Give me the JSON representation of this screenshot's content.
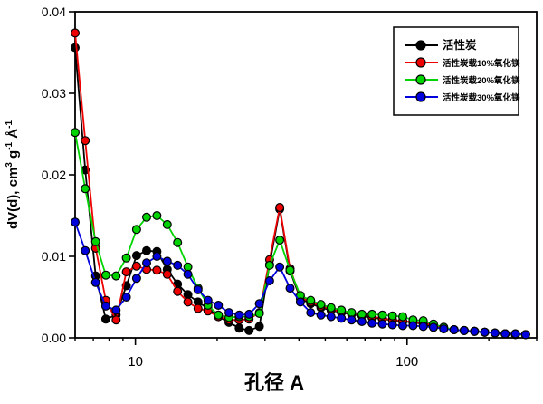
{
  "chart_data": {
    "type": "line",
    "title": "",
    "xlabel": "孔径 A",
    "ylabel": "dV(d), cm³ g⁻¹ Å⁻¹",
    "ylabel_parts": [
      {
        "t": "dV(d), cm",
        "sup": false
      },
      {
        "t": "3",
        "sup": true
      },
      {
        "t": " g",
        "sup": false
      },
      {
        "t": "-1",
        "sup": true
      },
      {
        "t": " Å",
        "sup": false
      },
      {
        "t": "-1",
        "sup": true
      }
    ],
    "x_scale": "log",
    "xlim": [
      6,
      300
    ],
    "ylim": [
      0,
      0.04
    ],
    "x_major_ticks": [
      10,
      100
    ],
    "x_major_tick_labels": [
      "10",
      "100"
    ],
    "x_minor_ticks": [
      6,
      7,
      8,
      9,
      20,
      30,
      40,
      50,
      60,
      70,
      80,
      90,
      200,
      300
    ],
    "y_ticks": [
      0,
      0.01,
      0.02,
      0.03,
      0.04
    ],
    "y_tick_labels": [
      "0.00",
      "0.01",
      "0.02",
      "0.03",
      "0.04"
    ],
    "grid": false,
    "frame": true,
    "legend_position": "top-right",
    "background": "#ffffff",
    "x": [
      6.0,
      6.54,
      7.14,
      7.78,
      8.49,
      9.26,
      10.1,
      11.0,
      12.0,
      13.1,
      14.3,
      15.6,
      17.0,
      18.5,
      20.2,
      22.1,
      24.1,
      26.2,
      28.6,
      31.2,
      34.0,
      37.1,
      40.5,
      44.2,
      48.2,
      52.5,
      57.3,
      62.5,
      68.2,
      74.3,
      81.1,
      88.4,
      96.4,
      105.2,
      114.7,
      125.1,
      136.5,
      148.9,
      162.3,
      177.1,
      193.1,
      210.6,
      229.7,
      250.6,
      273.3
    ],
    "series": [
      {
        "name": "活性炭",
        "color": "#000000",
        "marker": "circle",
        "values": [
          0.0356,
          0.0206,
          0.0076,
          0.0023,
          0.0028,
          0.0064,
          0.0101,
          0.0107,
          0.0106,
          0.0084,
          0.0066,
          0.0053,
          0.0044,
          0.0036,
          0.0026,
          0.0019,
          0.0012,
          0.0009,
          0.0014,
          0.009,
          0.0158,
          0.0082,
          0.0048,
          0.0042,
          0.0037,
          0.0034,
          0.0031,
          0.0029,
          0.0027,
          0.0025,
          0.0023,
          0.0022,
          0.002,
          0.0019,
          0.0017,
          0.0013,
          0.0012,
          0.001,
          0.0009,
          0.0008,
          0.0007,
          0.0006,
          0.0005,
          0.0004,
          0.0004
        ]
      },
      {
        "name": "活性炭载10%氧化镁",
        "color": "#ee0000",
        "marker": "circle",
        "values": [
          0.0374,
          0.0242,
          0.011,
          0.0046,
          0.0022,
          0.0081,
          0.0088,
          0.0084,
          0.0083,
          0.0078,
          0.0057,
          0.0044,
          0.0036,
          0.0033,
          0.0026,
          0.0022,
          0.0022,
          0.0023,
          0.0031,
          0.0096,
          0.016,
          0.0085,
          0.005,
          0.0044,
          0.0039,
          0.0035,
          0.0032,
          0.003,
          0.0028,
          0.0026,
          0.0024,
          0.0022,
          0.0021,
          0.0019,
          0.0018,
          0.0016,
          0.0012,
          0.001,
          0.0009,
          0.0008,
          0.0007,
          0.0006,
          0.0005,
          0.0005,
          0.0004
        ]
      },
      {
        "name": "活性炭载20%氧化镁",
        "color": "#00d400",
        "marker": "circle",
        "values": [
          0.0252,
          0.0183,
          0.0118,
          0.0077,
          0.0076,
          0.0098,
          0.0133,
          0.0148,
          0.015,
          0.0139,
          0.0117,
          0.0087,
          0.0061,
          0.004,
          0.0028,
          0.0025,
          0.0026,
          0.0026,
          0.003,
          0.0089,
          0.012,
          0.0083,
          0.0052,
          0.0046,
          0.0041,
          0.0037,
          0.0034,
          0.0031,
          0.0029,
          0.0029,
          0.0028,
          0.0027,
          0.0026,
          0.0022,
          0.0021,
          0.0017,
          0.0013,
          0.001,
          0.0009,
          0.0008,
          0.0007,
          0.0006,
          0.0005,
          0.0004,
          0.0004
        ]
      },
      {
        "name": "活性炭载30%氧化镁",
        "color": "#0000dd",
        "marker": "circle",
        "values": [
          0.0142,
          0.0107,
          0.0068,
          0.0039,
          0.0034,
          0.005,
          0.0073,
          0.0092,
          0.01,
          0.0094,
          0.0089,
          0.0078,
          0.0059,
          0.0046,
          0.004,
          0.0031,
          0.0028,
          0.0029,
          0.0042,
          0.007,
          0.0087,
          0.0061,
          0.0044,
          0.0031,
          0.0028,
          0.0026,
          0.0024,
          0.0022,
          0.002,
          0.0018,
          0.0017,
          0.0016,
          0.0015,
          0.0015,
          0.0014,
          0.0013,
          0.0011,
          0.001,
          0.0009,
          0.0008,
          0.0007,
          0.0006,
          0.0005,
          0.0005,
          0.0004
        ]
      }
    ]
  }
}
